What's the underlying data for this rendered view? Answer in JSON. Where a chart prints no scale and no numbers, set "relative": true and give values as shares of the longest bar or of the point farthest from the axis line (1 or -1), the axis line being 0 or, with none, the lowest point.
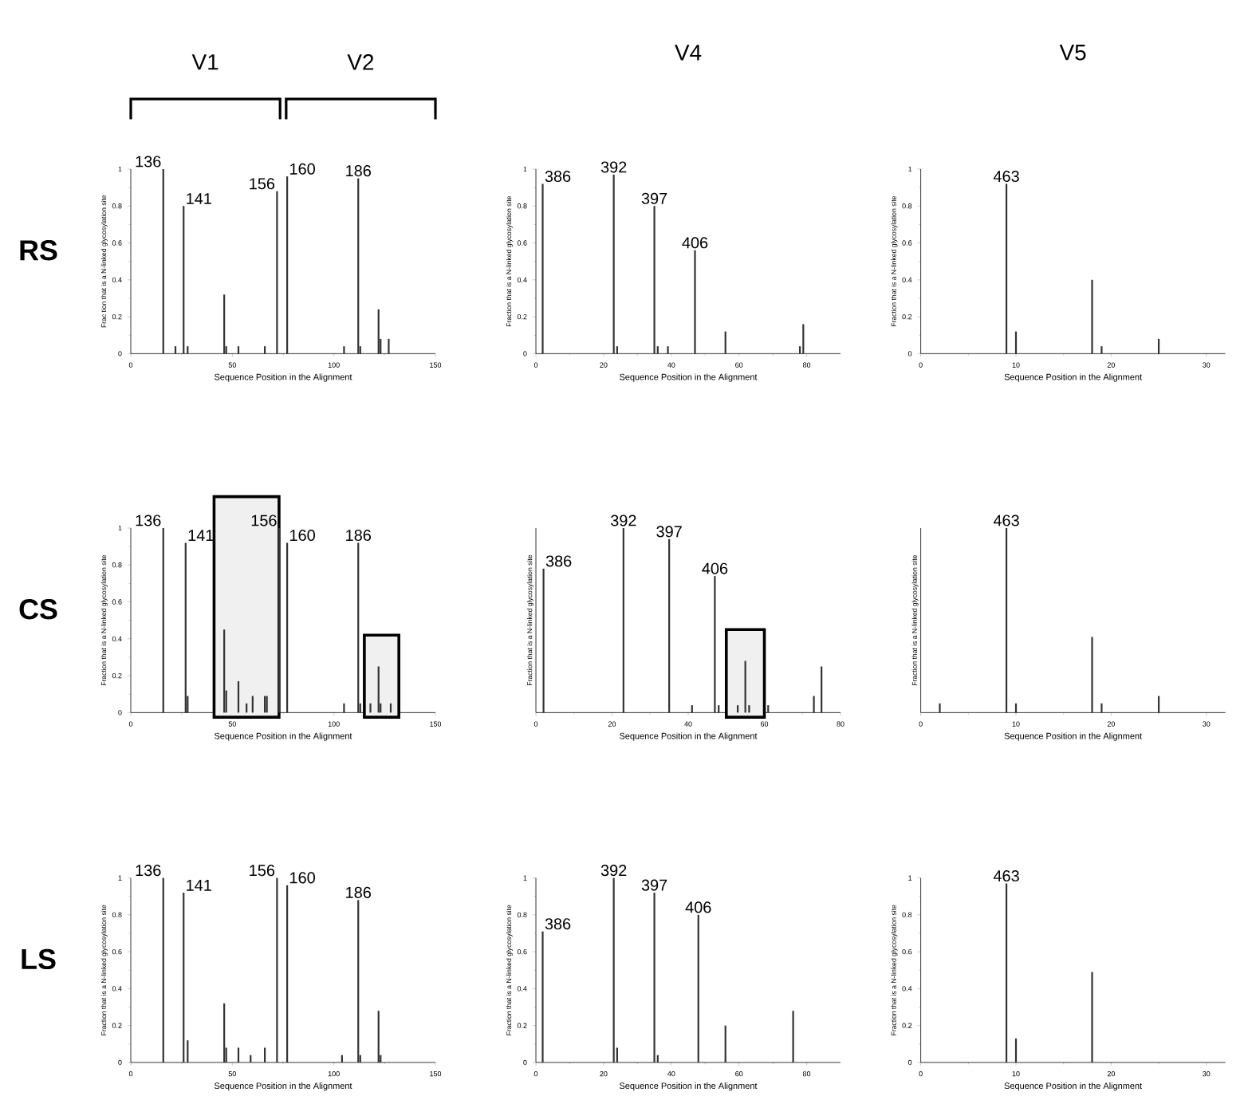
{
  "chart_data": [
    {
      "type": "bar",
      "color": "#333333",
      "xlabel": "Sequence Position in the Alignment",
      "ylabel": "Frac tion that is a N-linked glycosylation site",
      "xlim": [
        0,
        150
      ],
      "xticks": [
        0,
        50,
        100,
        150
      ],
      "ylim": [
        0,
        1
      ],
      "yticks": [
        0,
        0.2,
        0.4,
        0.6,
        0.8,
        1
      ],
      "x": [
        16,
        22,
        26,
        28,
        46,
        47,
        53,
        66,
        72,
        77,
        105,
        112,
        113,
        122,
        123,
        127
      ],
      "values": [
        1.0,
        0.04,
        0.8,
        0.04,
        0.32,
        0.04,
        0.04,
        0.04,
        0.88,
        0.96,
        0.04,
        0.95,
        0.04,
        0.24,
        0.08,
        0.08
      ],
      "annotations": [
        "RS",
        "V1",
        "V2",
        {
          "text": "136",
          "x": 16,
          "y": 1.0
        },
        {
          "text": "141",
          "x": 26,
          "y": 0.8
        },
        {
          "text": "156",
          "x": 72,
          "y": 0.88
        },
        {
          "text": "160",
          "x": 77,
          "y": 0.96
        },
        {
          "text": "186",
          "x": 112,
          "y": 0.95
        }
      ]
    },
    {
      "type": "bar",
      "title": "V4",
      "color": "#333333",
      "xlabel": "Sequence Position in the Alignment",
      "ylabel": "Fraction that is a N-linked glycosylation site",
      "xlim": [
        0,
        90
      ],
      "xticks": [
        0,
        20,
        40,
        60,
        80
      ],
      "ylim": [
        0,
        1
      ],
      "yticks": [
        0,
        0.2,
        0.4,
        0.6,
        0.8,
        1
      ],
      "x": [
        2,
        23,
        24,
        35,
        36,
        39,
        47,
        56,
        78,
        79
      ],
      "values": [
        0.92,
        0.97,
        0.04,
        0.8,
        0.04,
        0.04,
        0.56,
        0.12,
        0.04,
        0.16
      ],
      "annotations": [
        {
          "text": "386",
          "x": 2,
          "y": 0.92
        },
        {
          "text": "392",
          "x": 23,
          "y": 0.97
        },
        {
          "text": "397",
          "x": 35,
          "y": 0.8
        },
        {
          "text": "406",
          "x": 47,
          "y": 0.56
        }
      ]
    },
    {
      "type": "bar",
      "title": "V5",
      "color": "#333333",
      "xlabel": "Sequence Position in the Alignment",
      "ylabel": "Fraction that is a N-linked glycosylation site",
      "xlim": [
        0,
        32
      ],
      "xticks": [
        0,
        10,
        20,
        30
      ],
      "ylim": [
        0,
        1
      ],
      "yticks": [
        0,
        0.2,
        0.4,
        0.6,
        0.8,
        1
      ],
      "x": [
        9,
        10,
        18,
        19,
        25
      ],
      "values": [
        0.92,
        0.12,
        0.4,
        0.04,
        0.08
      ],
      "annotations": [
        {
          "text": "463",
          "x": 9,
          "y": 0.92
        }
      ]
    },
    {
      "type": "bar",
      "color": "#333333",
      "xlabel": "Sequence Position in the Alignment",
      "ylabel": "Fraction that is a N-linked glycosylation site",
      "xlim": [
        0,
        150
      ],
      "xticks": [
        0,
        50,
        100,
        150
      ],
      "ylim": [
        0,
        1
      ],
      "yticks": [
        0,
        0.2,
        0.4,
        0.6,
        0.8,
        1
      ],
      "x": [
        16,
        27,
        28,
        46,
        47,
        53,
        57,
        60,
        66,
        67,
        73,
        77,
        105,
        112,
        113,
        118,
        122,
        123,
        128
      ],
      "values": [
        1.0,
        0.92,
        0.09,
        0.45,
        0.12,
        0.17,
        0.05,
        0.09,
        0.09,
        0.09,
        1.0,
        0.92,
        0.05,
        0.92,
        0.05,
        0.05,
        0.25,
        0.05,
        0.05
      ],
      "bands": [
        {
          "axis": "x",
          "from": 41,
          "to": 73,
          "color": "#000000"
        },
        {
          "axis": "x",
          "from": 115,
          "to": 132,
          "color": "#000000"
        }
      ],
      "annotations": [
        "CS",
        {
          "text": "136",
          "x": 16,
          "y": 1.0
        },
        {
          "text": "141",
          "x": 27,
          "y": 0.92
        },
        {
          "text": "156",
          "x": 73,
          "y": 1.0
        },
        {
          "text": "160",
          "x": 77,
          "y": 0.92
        },
        {
          "text": "186",
          "x": 112,
          "y": 0.92
        }
      ]
    },
    {
      "type": "bar",
      "relative": true,
      "color": "#333333",
      "xlabel": "Sequence Position in the Alignment",
      "ylabel": "Fraction that is a N-linked glycosylation site",
      "xlim": [
        0,
        80
      ],
      "xticks": [
        0,
        20,
        40,
        60,
        80
      ],
      "x": [
        2,
        23,
        35,
        41,
        47,
        48,
        53,
        55,
        56,
        61,
        73,
        75
      ],
      "values": [
        0.78,
        1.0,
        0.94,
        0.04,
        0.74,
        0.04,
        0.04,
        0.28,
        0.04,
        0.04,
        0.09,
        0.25
      ],
      "bands": [
        {
          "axis": "x",
          "from": 50,
          "to": 60,
          "color": "#000000"
        }
      ],
      "annotations": [
        {
          "text": "386",
          "x": 2,
          "y": 0.78
        },
        {
          "text": "392",
          "x": 23,
          "y": 1.0
        },
        {
          "text": "397",
          "x": 35,
          "y": 0.94
        },
        {
          "text": "406",
          "x": 47,
          "y": 0.74
        }
      ]
    },
    {
      "type": "bar",
      "relative": true,
      "color": "#333333",
      "xlabel": "Sequence Position in the Alignment",
      "ylabel": "Fraction that is a N-linked glycosylation site",
      "xlim": [
        0,
        32
      ],
      "xticks": [
        0,
        10,
        20,
        30
      ],
      "x": [
        2,
        9,
        10,
        18,
        19,
        25
      ],
      "values": [
        0.05,
        1.0,
        0.05,
        0.41,
        0.05,
        0.09
      ],
      "annotations": [
        {
          "text": "463",
          "x": 9,
          "y": 1.0
        }
      ]
    },
    {
      "type": "bar",
      "color": "#333333",
      "xlabel": "Sequence Position in the Alignment",
      "ylabel": "Fraction that is a N-linked glycosylation site",
      "xlim": [
        0,
        150
      ],
      "xticks": [
        0,
        50,
        100,
        150
      ],
      "ylim": [
        0,
        1
      ],
      "yticks": [
        0,
        0.2,
        0.4,
        0.6,
        0.8,
        1
      ],
      "x": [
        16,
        26,
        28,
        46,
        47,
        53,
        59,
        66,
        72,
        77,
        104,
        112,
        113,
        122,
        123
      ],
      "values": [
        1.0,
        0.92,
        0.12,
        0.32,
        0.08,
        0.08,
        0.04,
        0.08,
        1.0,
        0.96,
        0.04,
        0.88,
        0.04,
        0.28,
        0.04
      ],
      "annotations": [
        "LS",
        {
          "text": "136",
          "x": 16,
          "y": 1.0
        },
        {
          "text": "141",
          "x": 26,
          "y": 0.92
        },
        {
          "text": "156",
          "x": 72,
          "y": 1.0
        },
        {
          "text": "160",
          "x": 77,
          "y": 0.96
        },
        {
          "text": "186",
          "x": 112,
          "y": 0.88
        }
      ]
    },
    {
      "type": "bar",
      "color": "#333333",
      "xlabel": "Sequence Position in the Alignment",
      "ylabel": "Fraction that is a N-linked glycosylation site",
      "xlim": [
        0,
        90
      ],
      "xticks": [
        0,
        20,
        40,
        60,
        80
      ],
      "ylim": [
        0,
        1
      ],
      "yticks": [
        0,
        0.2,
        0.4,
        0.6,
        0.8,
        1
      ],
      "x": [
        2,
        23,
        24,
        35,
        36,
        48,
        56,
        76
      ],
      "values": [
        0.71,
        1.0,
        0.08,
        0.92,
        0.04,
        0.8,
        0.2,
        0.28
      ],
      "annotations": [
        {
          "text": "386",
          "x": 2,
          "y": 0.71
        },
        {
          "text": "392",
          "x": 23,
          "y": 1.0
        },
        {
          "text": "397",
          "x": 35,
          "y": 0.92
        },
        {
          "text": "406",
          "x": 48,
          "y": 0.8
        }
      ]
    },
    {
      "type": "bar",
      "color": "#333333",
      "xlabel": "Sequence Position in the Alignment",
      "ylabel": "Fraction that is a N-linked glycosylation site",
      "xlim": [
        0,
        32
      ],
      "xticks": [
        0,
        10,
        20,
        30
      ],
      "ylim": [
        0,
        1
      ],
      "yticks": [
        0,
        0.2,
        0.4,
        0.6,
        0.8,
        1
      ],
      "x": [
        9,
        10,
        18
      ],
      "values": [
        0.97,
        0.13,
        0.49
      ],
      "annotations": [
        {
          "text": "463",
          "x": 9,
          "y": 0.97
        }
      ]
    }
  ]
}
